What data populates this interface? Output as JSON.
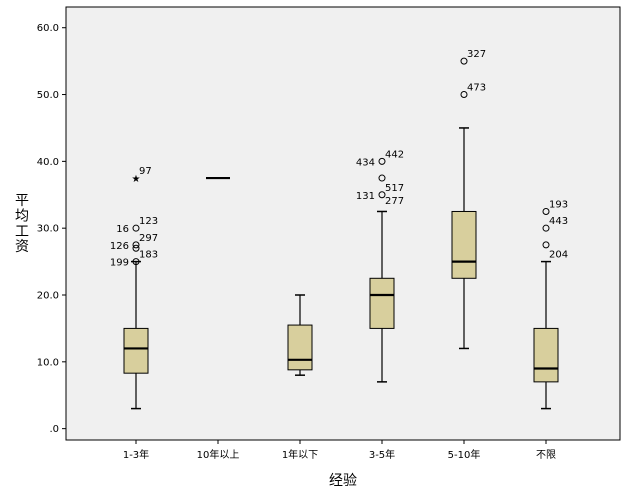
{
  "chart_data": {
    "type": "boxplot",
    "xlabel": "经验",
    "ylabel": "平均工资",
    "ylim": [
      -1.7,
      63.1
    ],
    "y_ticks": [
      0,
      10,
      20,
      30,
      40,
      50,
      60
    ],
    "y_tick_labels": [
      ".0",
      "10.0",
      "20.0",
      "30.0",
      "40.0",
      "50.0",
      "60.0"
    ],
    "grid": false,
    "box_color": "#d8cf9d",
    "plot_background": "#f0f0f0",
    "categories": [
      "1-3年",
      "10年以上",
      "1年以下",
      "3-5年",
      "5-10年",
      "不限"
    ],
    "boxes": [
      {
        "category": "1-3年",
        "whisker_low": 3,
        "q1": 8.3,
        "median": 12,
        "q3": 15,
        "whisker_high": 25,
        "outliers": [
          {
            "value": 37.5,
            "symbol": "star",
            "labels": [
              "97"
            ]
          },
          {
            "value": 30,
            "symbol": "circle",
            "labels": [
              "16",
              "123"
            ]
          },
          {
            "value": 27.5,
            "symbol": "circle",
            "labels": [
              "126",
              "297"
            ]
          },
          {
            "value": 27,
            "symbol": "circle",
            "labels": []
          },
          {
            "value": 25,
            "symbol": "circle",
            "labels": [
              "199",
              "183"
            ]
          }
        ]
      },
      {
        "category": "10年以上",
        "whisker_low": 37.5,
        "q1": 37.5,
        "median": 37.5,
        "q3": 37.5,
        "whisker_high": 37.5,
        "outliers": []
      },
      {
        "category": "1年以下",
        "whisker_low": 8,
        "q1": 8.8,
        "median": 10.3,
        "q3": 15.5,
        "whisker_high": 20,
        "outliers": []
      },
      {
        "category": "3-5年",
        "whisker_low": 7,
        "q1": 15,
        "median": 20,
        "q3": 22.5,
        "whisker_high": 32.5,
        "outliers": [
          {
            "value": 40,
            "symbol": "circle",
            "labels": [
              "434",
              "442"
            ]
          },
          {
            "value": 37.5,
            "symbol": "circle",
            "labels": []
          },
          {
            "value": 35,
            "symbol": "circle",
            "labels": [
              "131",
              "517"
            ]
          },
          {
            "value": 33,
            "symbol": "none",
            "labels": [
              "277"
            ]
          }
        ]
      },
      {
        "category": "5-10年",
        "whisker_low": 12,
        "q1": 22.5,
        "median": 25,
        "q3": 32.5,
        "whisker_high": 45,
        "outliers": [
          {
            "value": 55,
            "symbol": "circle",
            "labels": [
              "327"
            ]
          },
          {
            "value": 50,
            "symbol": "circle",
            "labels": [
              "473"
            ]
          }
        ]
      },
      {
        "category": "不限",
        "whisker_low": 3,
        "q1": 7,
        "median": 9,
        "q3": 15,
        "whisker_high": 25,
        "outliers": [
          {
            "value": 32.5,
            "symbol": "circle",
            "labels": [
              "193"
            ]
          },
          {
            "value": 30,
            "symbol": "circle",
            "labels": [
              "443"
            ]
          },
          {
            "value": 27.5,
            "symbol": "circle",
            "labels": []
          },
          {
            "value": 25,
            "symbol": "none",
            "labels": [
              "204"
            ]
          }
        ]
      }
    ]
  }
}
